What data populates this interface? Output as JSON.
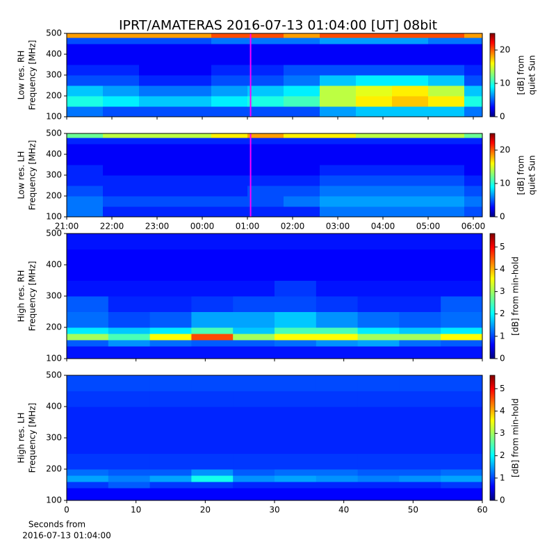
{
  "chart_data": [
    {
      "type": "heatmap",
      "title": "IPRT/AMATERAS 2016-07-13 01:04:00 [UT]   08bit",
      "ylabel": [
        "Low res. RH",
        "Frequency [MHz]"
      ],
      "colorbar_label": [
        "[dB] from",
        "quiet Sun"
      ],
      "xlim": [
        21,
        30.2
      ],
      "ylim": [
        100,
        500
      ],
      "yticks": [
        100,
        200,
        300,
        400,
        500
      ],
      "zlim": [
        0,
        25
      ],
      "zticks": [
        0,
        10,
        20
      ],
      "marker_x": 25.07,
      "marker_color": "#ff00ff",
      "xbins": [
        21.0,
        21.8,
        22.6,
        23.4,
        24.2,
        25.0,
        25.8,
        26.6,
        27.4,
        28.2,
        29.0,
        29.8,
        30.2
      ],
      "ybins": [
        100,
        150,
        200,
        250,
        300,
        350,
        400,
        450,
        480,
        500
      ],
      "values": [
        [
          6,
          5,
          5,
          5,
          5,
          5,
          5,
          7,
          8,
          8,
          8,
          6
        ],
        [
          10,
          9,
          8,
          8,
          9,
          10,
          11,
          14,
          16,
          17,
          16,
          10
        ],
        [
          8,
          7,
          6,
          6,
          7,
          8,
          9,
          14,
          15,
          16,
          14,
          8
        ],
        [
          5,
          5,
          4,
          4,
          5,
          5,
          6,
          8,
          9,
          9,
          8,
          5
        ],
        [
          4,
          4,
          3,
          3,
          4,
          4,
          5,
          5,
          5,
          5,
          5,
          4
        ],
        [
          3,
          3,
          3,
          3,
          3,
          3,
          3,
          3,
          3,
          3,
          3,
          3
        ],
        [
          3,
          3,
          3,
          3,
          3,
          3,
          3,
          3,
          3,
          3,
          3,
          3
        ],
        [
          5,
          5,
          5,
          5,
          6,
          6,
          6,
          7,
          7,
          7,
          6,
          6
        ],
        [
          18,
          18,
          18,
          18,
          20,
          20,
          18,
          20,
          20,
          20,
          20,
          18
        ]
      ]
    },
    {
      "type": "heatmap",
      "ylabel": [
        "Low res. LH",
        "Frequency [MHz]"
      ],
      "colorbar_label": [
        "[dB] from",
        "quiet Sun"
      ],
      "xlim": [
        21,
        30.2
      ],
      "ylim": [
        100,
        500
      ],
      "yticks": [
        100,
        200,
        300,
        400,
        500
      ],
      "xticks": [
        {
          "value": 21,
          "label": "21:00"
        },
        {
          "value": 22,
          "label": "22:00"
        },
        {
          "value": 23,
          "label": "23:00"
        },
        {
          "value": 24,
          "label": "00:00"
        },
        {
          "value": 25,
          "label": "01:00"
        },
        {
          "value": 26,
          "label": "02:00"
        },
        {
          "value": 27,
          "label": "03:00"
        },
        {
          "value": 28,
          "label": "04:00"
        },
        {
          "value": 29,
          "label": "05:00"
        },
        {
          "value": 30,
          "label": "06:00"
        }
      ],
      "zlim": [
        0,
        25
      ],
      "zticks": [
        0,
        10,
        20
      ],
      "marker_x": 25.07,
      "marker_color": "#ff00ff",
      "xbins": [
        21.0,
        21.8,
        22.6,
        23.4,
        24.2,
        25.0,
        25.8,
        26.6,
        27.4,
        28.2,
        29.0,
        29.8,
        30.2
      ],
      "ybins": [
        100,
        150,
        200,
        250,
        300,
        350,
        400,
        450,
        480,
        500
      ],
      "values": [
        [
          6,
          4,
          4,
          4,
          4,
          4,
          4,
          6,
          6,
          6,
          6,
          5
        ],
        [
          6,
          5,
          5,
          5,
          5,
          5,
          6,
          7,
          7,
          7,
          7,
          6
        ],
        [
          5,
          4,
          4,
          4,
          4,
          5,
          5,
          6,
          6,
          6,
          6,
          5
        ],
        [
          4,
          4,
          4,
          4,
          4,
          4,
          4,
          5,
          5,
          5,
          5,
          4
        ],
        [
          4,
          3,
          3,
          3,
          3,
          3,
          3,
          4,
          4,
          4,
          4,
          3
        ],
        [
          3,
          3,
          3,
          3,
          3,
          3,
          3,
          3,
          3,
          3,
          3,
          3
        ],
        [
          3,
          3,
          3,
          3,
          3,
          3,
          3,
          3,
          3,
          3,
          3,
          3
        ],
        [
          4,
          4,
          4,
          4,
          4,
          4,
          4,
          4,
          4,
          4,
          4,
          4
        ],
        [
          12,
          14,
          14,
          14,
          16,
          18,
          16,
          16,
          14,
          14,
          14,
          12
        ]
      ]
    },
    {
      "type": "heatmap",
      "ylabel": [
        "High res. RH",
        "Frequency [MHz]"
      ],
      "colorbar_label": [
        "[dB] from min-hold"
      ],
      "xlim": [
        0,
        60
      ],
      "ylim": [
        100,
        500
      ],
      "yticks": [
        100,
        200,
        300,
        400,
        500
      ],
      "zlim": [
        0,
        5.6
      ],
      "zticks": [
        0,
        1,
        2,
        3,
        4,
        5
      ],
      "xbins": [
        0,
        6,
        12,
        18,
        24,
        30,
        36,
        42,
        48,
        54,
        60
      ],
      "ybins": [
        100,
        140,
        160,
        180,
        200,
        250,
        300,
        350,
        400,
        450,
        500
      ],
      "values": [
        [
          0.8,
          0.8,
          0.8,
          0.8,
          0.8,
          0.8,
          0.8,
          0.8,
          0.8,
          0.8
        ],
        [
          1.2,
          1.5,
          1.3,
          1.2,
          1.2,
          1.3,
          1.5,
          1.6,
          1.3,
          1.2
        ],
        [
          3.0,
          2.5,
          3.5,
          4.5,
          3.0,
          3.5,
          3.5,
          3.0,
          3.0,
          3.5
        ],
        [
          2.0,
          1.8,
          2.0,
          2.5,
          1.8,
          2.5,
          2.5,
          2.0,
          1.8,
          2.0
        ],
        [
          1.3,
          1.1,
          1.2,
          1.6,
          1.6,
          1.8,
          1.5,
          1.3,
          1.2,
          1.3
        ],
        [
          1.2,
          0.9,
          0.9,
          1.0,
          1.1,
          1.1,
          1.0,
          0.9,
          0.9,
          1.2
        ],
        [
          0.8,
          0.8,
          0.8,
          0.8,
          0.8,
          1.0,
          0.8,
          0.8,
          0.8,
          0.8
        ],
        [
          0.7,
          0.7,
          0.7,
          0.7,
          0.7,
          0.7,
          0.7,
          0.7,
          0.7,
          0.7
        ],
        [
          0.7,
          0.7,
          0.7,
          0.7,
          0.7,
          0.7,
          0.7,
          0.7,
          0.7,
          0.7
        ],
        [
          0.8,
          0.8,
          0.8,
          0.8,
          0.8,
          0.8,
          0.8,
          0.8,
          0.8,
          0.8
        ]
      ]
    },
    {
      "type": "heatmap",
      "ylabel": [
        "High res. LH",
        "Frequency [MHz]"
      ],
      "colorbar_label": [
        "[dB] from min-hold"
      ],
      "xlabel": [
        "Seconds from",
        "2016-07-13 01:04:00"
      ],
      "xlim": [
        0,
        60
      ],
      "ylim": [
        100,
        500
      ],
      "yticks": [
        100,
        200,
        300,
        400,
        500
      ],
      "xticks": [
        0,
        10,
        20,
        30,
        40,
        50,
        60
      ],
      "zlim": [
        0,
        5.6
      ],
      "zticks": [
        0,
        1,
        2,
        3,
        4,
        5
      ],
      "xbins": [
        0,
        6,
        12,
        18,
        24,
        30,
        36,
        42,
        48,
        54,
        60
      ],
      "ybins": [
        100,
        140,
        160,
        180,
        200,
        250,
        300,
        350,
        400,
        450,
        500
      ],
      "values": [
        [
          0.7,
          0.7,
          0.7,
          0.7,
          0.7,
          0.7,
          0.7,
          0.7,
          0.7,
          0.7
        ],
        [
          1.0,
          1.2,
          1.0,
          1.0,
          0.9,
          0.9,
          0.9,
          0.9,
          0.9,
          1.0
        ],
        [
          1.6,
          1.4,
          1.6,
          2.2,
          1.5,
          1.6,
          1.5,
          1.4,
          1.5,
          1.6
        ],
        [
          1.3,
          1.2,
          1.2,
          1.5,
          1.2,
          1.3,
          1.3,
          1.2,
          1.2,
          1.3
        ],
        [
          1.0,
          1.0,
          1.0,
          1.0,
          1.0,
          1.0,
          1.0,
          1.0,
          1.0,
          1.0
        ],
        [
          0.9,
          0.9,
          0.9,
          0.9,
          0.9,
          0.9,
          0.9,
          0.9,
          0.9,
          0.9
        ],
        [
          0.9,
          0.9,
          0.9,
          0.9,
          0.9,
          0.9,
          0.9,
          0.9,
          0.9,
          0.9
        ],
        [
          0.9,
          0.9,
          0.9,
          0.9,
          0.9,
          0.9,
          0.9,
          0.9,
          0.9,
          0.9
        ],
        [
          1.0,
          1.0,
          1.0,
          1.0,
          1.0,
          1.0,
          1.0,
          1.0,
          1.0,
          1.0
        ],
        [
          1.1,
          1.1,
          1.1,
          1.1,
          1.1,
          1.1,
          1.1,
          1.1,
          1.1,
          1.1
        ]
      ]
    }
  ]
}
